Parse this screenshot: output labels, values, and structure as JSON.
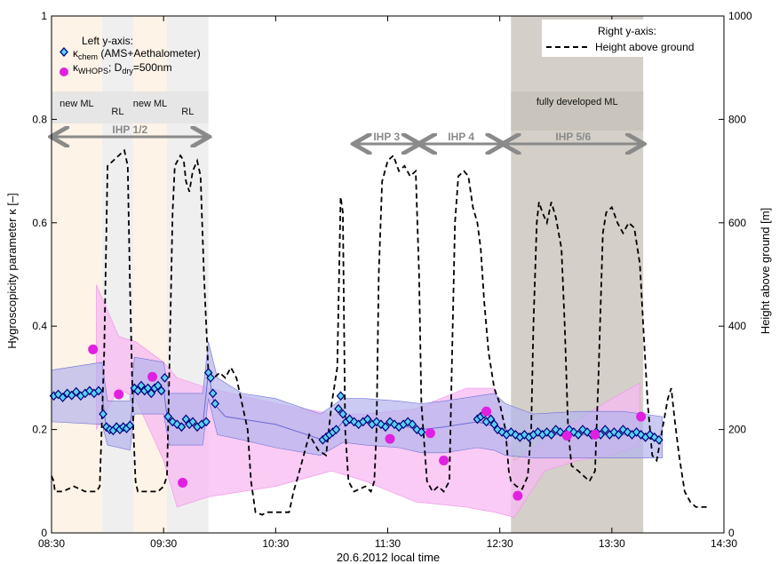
{
  "chart_data": {
    "type": "line",
    "xlabel": "20.6.2012 local time",
    "ylabel_left": "Hygroscopicity parameter κ [–]",
    "ylabel_right": "Height above ground [m]",
    "x_range_hours": [
      8.5,
      14.5
    ],
    "x_ticks": [
      {
        "h": 8.5,
        "label": "08:30"
      },
      {
        "h": 9.5,
        "label": "09:30"
      },
      {
        "h": 10.5,
        "label": "10:30"
      },
      {
        "h": 11.5,
        "label": "11:30"
      },
      {
        "h": 12.5,
        "label": "12:30"
      },
      {
        "h": 13.5,
        "label": "13:30"
      },
      {
        "h": 14.5,
        "label": "14:30"
      }
    ],
    "ylim_left": [
      0,
      1
    ],
    "yticks_left": [
      "0",
      "0.2",
      "0.4",
      "0.6",
      "0.8",
      "1"
    ],
    "ylim_right": [
      0,
      1000
    ],
    "yticks_right": [
      "0",
      "200",
      "400",
      "600",
      "800",
      "1000"
    ],
    "legend_left": {
      "title": "Left y-axis:",
      "kchem": {
        "symbol": "κ",
        "sub": "chem",
        "text": " (AMS+Aethalometer)"
      },
      "kwhops": {
        "symbol": "κ",
        "sub": "WHOPS",
        "text": "; D",
        "sub2": "dry",
        "text2": "=500nm"
      }
    },
    "legend_right": {
      "title": "Right y-axis:",
      "entry": "Height above ground"
    },
    "phases": [
      {
        "label": "new ML",
        "start": 8.5,
        "end": 8.95,
        "color": "#fdf3e6"
      },
      {
        "label": "RL",
        "start": 8.95,
        "end": 9.23,
        "color": "#efefef"
      },
      {
        "label": "new ML",
        "start": 9.23,
        "end": 9.53,
        "color": "#fdf3e6"
      },
      {
        "label": "RL",
        "start": 9.53,
        "end": 9.9,
        "color": "#efefef"
      },
      {
        "label": "fully developed ML",
        "start": 12.6,
        "end": 13.78,
        "color": "#d4d0c9"
      }
    ],
    "ihp": [
      {
        "label": "IHP 1/2",
        "start": 8.5,
        "end": 9.9
      },
      {
        "label": "IHP 3",
        "start": 11.2,
        "end": 11.78
      },
      {
        "label": "IHP 4",
        "start": 11.78,
        "end": 12.53
      },
      {
        "label": "IHP 5/6",
        "start": 12.53,
        "end": 13.78
      }
    ],
    "height_above_ground": [
      [
        8.5,
        110
      ],
      [
        8.52,
        100
      ],
      [
        8.53,
        80
      ],
      [
        8.6,
        80
      ],
      [
        8.7,
        90
      ],
      [
        8.8,
        80
      ],
      [
        8.9,
        80
      ],
      [
        8.93,
        90
      ],
      [
        8.97,
        350
      ],
      [
        9.0,
        710
      ],
      [
        9.05,
        720
      ],
      [
        9.1,
        730
      ],
      [
        9.15,
        740
      ],
      [
        9.18,
        710
      ],
      [
        9.2,
        480
      ],
      [
        9.23,
        200
      ],
      [
        9.25,
        100
      ],
      [
        9.27,
        80
      ],
      [
        9.35,
        80
      ],
      [
        9.45,
        80
      ],
      [
        9.5,
        90
      ],
      [
        9.53,
        110
      ],
      [
        9.55,
        300
      ],
      [
        9.58,
        620
      ],
      [
        9.6,
        710
      ],
      [
        9.65,
        730
      ],
      [
        9.68,
        720
      ],
      [
        9.7,
        680
      ],
      [
        9.73,
        660
      ],
      [
        9.76,
        700
      ],
      [
        9.8,
        720
      ],
      [
        9.83,
        690
      ],
      [
        9.86,
        500
      ],
      [
        9.9,
        310
      ],
      [
        9.95,
        300
      ],
      [
        10.0,
        310
      ],
      [
        10.05,
        300
      ],
      [
        10.1,
        320
      ],
      [
        10.15,
        300
      ],
      [
        10.2,
        250
      ],
      [
        10.25,
        200
      ],
      [
        10.28,
        100
      ],
      [
        10.32,
        40
      ],
      [
        10.38,
        35
      ],
      [
        10.42,
        40
      ],
      [
        10.5,
        40
      ],
      [
        10.62,
        40
      ],
      [
        10.66,
        80
      ],
      [
        10.7,
        110
      ],
      [
        10.75,
        150
      ],
      [
        10.8,
        190
      ],
      [
        10.88,
        160
      ],
      [
        10.95,
        150
      ],
      [
        11.0,
        250
      ],
      [
        11.05,
        320
      ],
      [
        11.08,
        650
      ],
      [
        11.1,
        620
      ],
      [
        11.12,
        200
      ],
      [
        11.15,
        100
      ],
      [
        11.2,
        80
      ],
      [
        11.3,
        90
      ],
      [
        11.35,
        80
      ],
      [
        11.38,
        100
      ],
      [
        11.4,
        200
      ],
      [
        11.42,
        500
      ],
      [
        11.45,
        680
      ],
      [
        11.5,
        720
      ],
      [
        11.55,
        730
      ],
      [
        11.6,
        700
      ],
      [
        11.65,
        710
      ],
      [
        11.7,
        690
      ],
      [
        11.75,
        700
      ],
      [
        11.78,
        500
      ],
      [
        11.8,
        250
      ],
      [
        11.85,
        100
      ],
      [
        11.9,
        80
      ],
      [
        11.95,
        90
      ],
      [
        12.0,
        80
      ],
      [
        12.05,
        100
      ],
      [
        12.07,
        300
      ],
      [
        12.1,
        600
      ],
      [
        12.13,
        690
      ],
      [
        12.18,
        700
      ],
      [
        12.22,
        690
      ],
      [
        12.26,
        630
      ],
      [
        12.3,
        600
      ],
      [
        12.33,
        550
      ],
      [
        12.36,
        450
      ],
      [
        12.4,
        350
      ],
      [
        12.45,
        280
      ],
      [
        12.5,
        250
      ],
      [
        12.55,
        200
      ],
      [
        12.58,
        120
      ],
      [
        12.6,
        100
      ],
      [
        12.65,
        90
      ],
      [
        12.7,
        85
      ],
      [
        12.75,
        110
      ],
      [
        12.78,
        200
      ],
      [
        12.8,
        400
      ],
      [
        12.83,
        600
      ],
      [
        12.85,
        640
      ],
      [
        12.88,
        620
      ],
      [
        12.92,
        600
      ],
      [
        12.96,
        640
      ],
      [
        13.0,
        610
      ],
      [
        13.05,
        550
      ],
      [
        13.08,
        400
      ],
      [
        13.11,
        200
      ],
      [
        13.14,
        130
      ],
      [
        13.2,
        120
      ],
      [
        13.3,
        100
      ],
      [
        13.35,
        120
      ],
      [
        13.38,
        300
      ],
      [
        13.42,
        580
      ],
      [
        13.45,
        620
      ],
      [
        13.5,
        630
      ],
      [
        13.55,
        600
      ],
      [
        13.6,
        580
      ],
      [
        13.65,
        600
      ],
      [
        13.7,
        590
      ],
      [
        13.75,
        520
      ],
      [
        13.78,
        400
      ],
      [
        13.82,
        250
      ],
      [
        13.86,
        150
      ],
      [
        13.9,
        140
      ],
      [
        13.95,
        200
      ],
      [
        14.0,
        260
      ],
      [
        14.03,
        280
      ],
      [
        14.06,
        220
      ],
      [
        14.1,
        150
      ],
      [
        14.15,
        80
      ],
      [
        14.2,
        60
      ],
      [
        14.25,
        50
      ],
      [
        14.35,
        50
      ]
    ],
    "kchem_mean": [
      [
        8.5,
        0.265
      ],
      [
        8.95,
        0.27
      ],
      [
        8.98,
        0.215
      ],
      [
        9.0,
        0.205
      ],
      [
        9.1,
        0.2
      ],
      [
        9.2,
        0.205
      ],
      [
        9.24,
        0.28
      ],
      [
        9.5,
        0.28
      ],
      [
        9.53,
        0.225
      ],
      [
        9.6,
        0.21
      ],
      [
        9.75,
        0.21
      ],
      [
        9.85,
        0.21
      ],
      [
        9.9,
        0.31
      ],
      [
        9.95,
        0.25
      ],
      [
        10.05,
        0.225
      ],
      [
        10.5,
        0.21
      ],
      [
        10.92,
        0.18
      ],
      [
        11.0,
        0.19
      ],
      [
        11.1,
        0.215
      ],
      [
        11.3,
        0.215
      ],
      [
        11.55,
        0.21
      ],
      [
        11.8,
        0.2
      ],
      [
        12.0,
        0.205
      ],
      [
        12.3,
        0.215
      ],
      [
        12.55,
        0.2
      ],
      [
        12.7,
        0.19
      ],
      [
        13.0,
        0.19
      ],
      [
        13.3,
        0.19
      ],
      [
        13.6,
        0.19
      ],
      [
        13.8,
        0.19
      ],
      [
        13.95,
        0.18
      ]
    ],
    "kchem_band": [
      [
        8.5,
        0.315,
        0.215
      ],
      [
        8.95,
        0.33,
        0.21
      ],
      [
        9.0,
        0.255,
        0.17
      ],
      [
        9.2,
        0.255,
        0.16
      ],
      [
        9.24,
        0.34,
        0.23
      ],
      [
        9.5,
        0.33,
        0.23
      ],
      [
        9.55,
        0.27,
        0.17
      ],
      [
        9.85,
        0.27,
        0.17
      ],
      [
        9.9,
        0.37,
        0.26
      ],
      [
        9.98,
        0.3,
        0.19
      ],
      [
        10.2,
        0.27,
        0.18
      ],
      [
        10.5,
        0.26,
        0.165
      ],
      [
        10.9,
        0.23,
        0.15
      ],
      [
        11.1,
        0.26,
        0.175
      ],
      [
        11.3,
        0.26,
        0.17
      ],
      [
        11.6,
        0.255,
        0.165
      ],
      [
        11.8,
        0.25,
        0.155
      ],
      [
        12.0,
        0.255,
        0.155
      ],
      [
        12.3,
        0.265,
        0.165
      ],
      [
        12.45,
        0.27,
        0.16
      ],
      [
        12.55,
        0.25,
        0.15
      ],
      [
        12.8,
        0.23,
        0.145
      ],
      [
        13.2,
        0.235,
        0.145
      ],
      [
        13.6,
        0.235,
        0.145
      ],
      [
        13.95,
        0.225,
        0.145
      ]
    ],
    "kchem_points": [
      [
        8.52,
        0.265
      ],
      [
        8.56,
        0.268
      ],
      [
        8.6,
        0.262
      ],
      [
        8.64,
        0.27
      ],
      [
        8.68,
        0.266
      ],
      [
        8.72,
        0.273
      ],
      [
        8.76,
        0.265
      ],
      [
        8.8,
        0.27
      ],
      [
        8.84,
        0.275
      ],
      [
        8.88,
        0.27
      ],
      [
        8.92,
        0.275
      ],
      [
        8.96,
        0.23
      ],
      [
        8.99,
        0.205
      ],
      [
        9.02,
        0.2
      ],
      [
        9.05,
        0.198
      ],
      [
        9.08,
        0.205
      ],
      [
        9.11,
        0.2
      ],
      [
        9.14,
        0.205
      ],
      [
        9.17,
        0.202
      ],
      [
        9.2,
        0.208
      ],
      [
        9.24,
        0.28
      ],
      [
        9.27,
        0.275
      ],
      [
        9.3,
        0.285
      ],
      [
        9.33,
        0.275
      ],
      [
        9.36,
        0.28
      ],
      [
        9.39,
        0.27
      ],
      [
        9.42,
        0.28
      ],
      [
        9.45,
        0.285
      ],
      [
        9.48,
        0.275
      ],
      [
        9.51,
        0.3
      ],
      [
        9.54,
        0.225
      ],
      [
        9.58,
        0.215
      ],
      [
        9.62,
        0.21
      ],
      [
        9.66,
        0.205
      ],
      [
        9.7,
        0.22
      ],
      [
        9.73,
        0.21
      ],
      [
        9.76,
        0.215
      ],
      [
        9.8,
        0.205
      ],
      [
        9.84,
        0.21
      ],
      [
        9.88,
        0.215
      ],
      [
        9.9,
        0.31
      ],
      [
        9.92,
        0.3
      ],
      [
        9.94,
        0.27
      ],
      [
        9.96,
        0.25
      ],
      [
        10.92,
        0.18
      ],
      [
        10.95,
        0.185
      ],
      [
        10.98,
        0.19
      ],
      [
        11.01,
        0.195
      ],
      [
        11.04,
        0.2
      ],
      [
        11.06,
        0.24
      ],
      [
        11.08,
        0.265
      ],
      [
        11.1,
        0.23
      ],
      [
        11.13,
        0.215
      ],
      [
        11.16,
        0.22
      ],
      [
        11.2,
        0.215
      ],
      [
        11.24,
        0.21
      ],
      [
        11.28,
        0.215
      ],
      [
        11.32,
        0.22
      ],
      [
        11.36,
        0.21
      ],
      [
        11.4,
        0.215
      ],
      [
        11.44,
        0.21
      ],
      [
        11.48,
        0.205
      ],
      [
        11.52,
        0.215
      ],
      [
        11.56,
        0.21
      ],
      [
        11.6,
        0.205
      ],
      [
        11.64,
        0.21
      ],
      [
        11.68,
        0.215
      ],
      [
        11.72,
        0.21
      ],
      [
        11.76,
        0.2
      ],
      [
        11.8,
        0.195
      ],
      [
        12.3,
        0.22
      ],
      [
        12.33,
        0.225
      ],
      [
        12.36,
        0.23
      ],
      [
        12.38,
        0.215
      ],
      [
        12.42,
        0.22
      ],
      [
        12.45,
        0.21
      ],
      [
        12.48,
        0.2
      ],
      [
        12.52,
        0.195
      ],
      [
        12.56,
        0.19
      ],
      [
        12.6,
        0.195
      ],
      [
        12.64,
        0.19
      ],
      [
        12.68,
        0.185
      ],
      [
        12.72,
        0.19
      ],
      [
        12.76,
        0.185
      ],
      [
        12.8,
        0.19
      ],
      [
        12.84,
        0.195
      ],
      [
        12.88,
        0.19
      ],
      [
        12.92,
        0.195
      ],
      [
        12.96,
        0.19
      ],
      [
        13.0,
        0.2
      ],
      [
        13.04,
        0.195
      ],
      [
        13.08,
        0.19
      ],
      [
        13.12,
        0.2
      ],
      [
        13.16,
        0.195
      ],
      [
        13.2,
        0.19
      ],
      [
        13.24,
        0.2
      ],
      [
        13.28,
        0.195
      ],
      [
        13.32,
        0.19
      ],
      [
        13.36,
        0.195
      ],
      [
        13.4,
        0.19
      ],
      [
        13.44,
        0.2
      ],
      [
        13.48,
        0.19
      ],
      [
        13.52,
        0.195
      ],
      [
        13.56,
        0.19
      ],
      [
        13.6,
        0.2
      ],
      [
        13.64,
        0.195
      ],
      [
        13.68,
        0.19
      ],
      [
        13.72,
        0.195
      ],
      [
        13.76,
        0.19
      ],
      [
        13.8,
        0.185
      ],
      [
        13.84,
        0.19
      ],
      [
        13.88,
        0.185
      ],
      [
        13.92,
        0.18
      ]
    ],
    "kwhops_band": [
      [
        8.9,
        0.48,
        0.2
      ],
      [
        9.1,
        0.38,
        0.28
      ],
      [
        9.25,
        0.37,
        0.26
      ],
      [
        9.5,
        0.33,
        0.14
      ],
      [
        9.62,
        0.3,
        0.05
      ],
      [
        9.9,
        0.28,
        0.07
      ],
      [
        10.5,
        0.25,
        0.09
      ],
      [
        11.0,
        0.23,
        0.12
      ],
      [
        11.3,
        0.23,
        0.1
      ],
      [
        11.75,
        0.24,
        0.06
      ],
      [
        12.2,
        0.28,
        0.05
      ],
      [
        12.45,
        0.28,
        0.04
      ],
      [
        12.63,
        0.14,
        0.03
      ],
      [
        12.9,
        0.18,
        0.12
      ],
      [
        13.2,
        0.22,
        0.14
      ],
      [
        13.5,
        0.26,
        0.15
      ],
      [
        13.75,
        0.29,
        0.17
      ]
    ],
    "kwhops_points": [
      [
        8.87,
        0.355
      ],
      [
        9.1,
        0.268
      ],
      [
        9.4,
        0.302
      ],
      [
        9.67,
        0.097
      ],
      [
        11.52,
        0.182
      ],
      [
        11.88,
        0.193
      ],
      [
        12.0,
        0.14
      ],
      [
        12.38,
        0.235
      ],
      [
        12.66,
        0.072
      ],
      [
        13.1,
        0.188
      ],
      [
        13.35,
        0.19
      ],
      [
        13.76,
        0.225
      ]
    ],
    "colors": {
      "kchem_fill": "#5dd0f2",
      "kchem_edge": "#00007a",
      "kchem_band": "#b3b3ed",
      "kwhops_fill": "#e020e0",
      "kwhops_band": "#f7b9f2",
      "ihp_arrow": "#8a8a8a"
    }
  }
}
